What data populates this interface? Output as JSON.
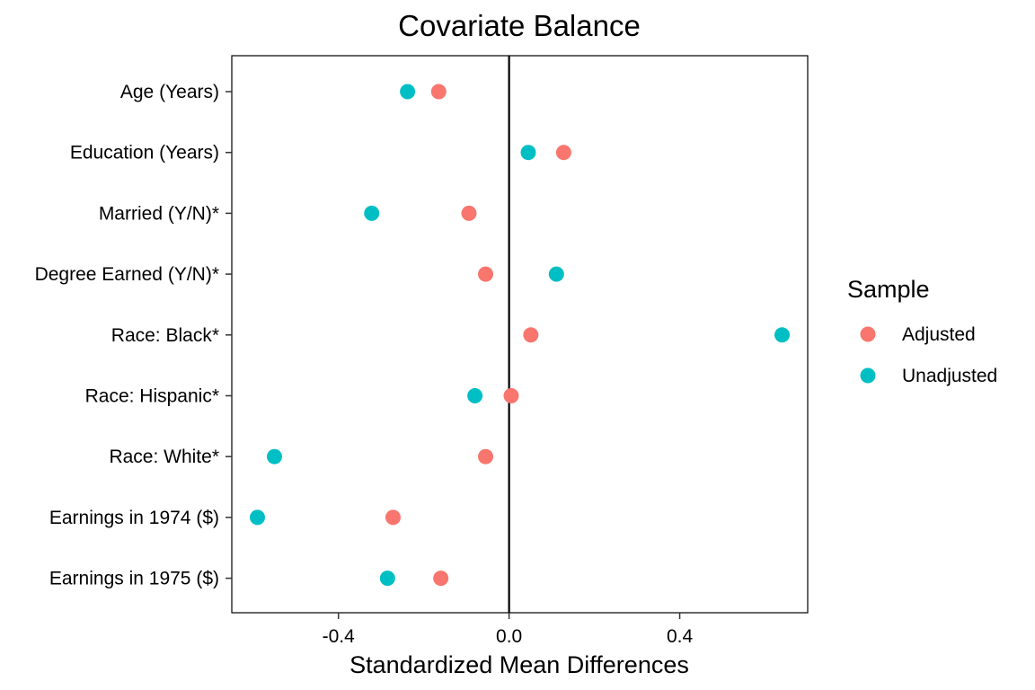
{
  "chart_data": {
    "type": "scatter",
    "title": "Covariate Balance",
    "xlabel": "Standardized Mean Differences",
    "ylabel": "",
    "xlim": [
      -0.65,
      0.7
    ],
    "x_ticks": [
      -0.4,
      0.0,
      0.4
    ],
    "x_tick_labels": [
      "-0.4",
      "0.0",
      "0.4"
    ],
    "reference_line_x": 0,
    "grid": false,
    "categories": [
      "Age (Years)",
      "Education (Years)",
      "Married (Y/N)*",
      "Degree Earned (Y/N)*",
      "Race: Black*",
      "Race: Hispanic*",
      "Race: White*",
      "Earnings in 1974 ($)",
      "Earnings in 1975 ($)"
    ],
    "legend": {
      "title": "Sample",
      "position": "right"
    },
    "series": [
      {
        "name": "Adjusted",
        "color": "#F8766D",
        "values": [
          -0.165,
          0.128,
          -0.094,
          -0.055,
          0.051,
          0.005,
          -0.055,
          -0.272,
          -0.16
        ]
      },
      {
        "name": "Unadjusted",
        "color": "#00BFC4",
        "values": [
          -0.238,
          0.045,
          -0.322,
          0.111,
          0.64,
          -0.08,
          -0.55,
          -0.59,
          -0.285
        ]
      }
    ]
  }
}
